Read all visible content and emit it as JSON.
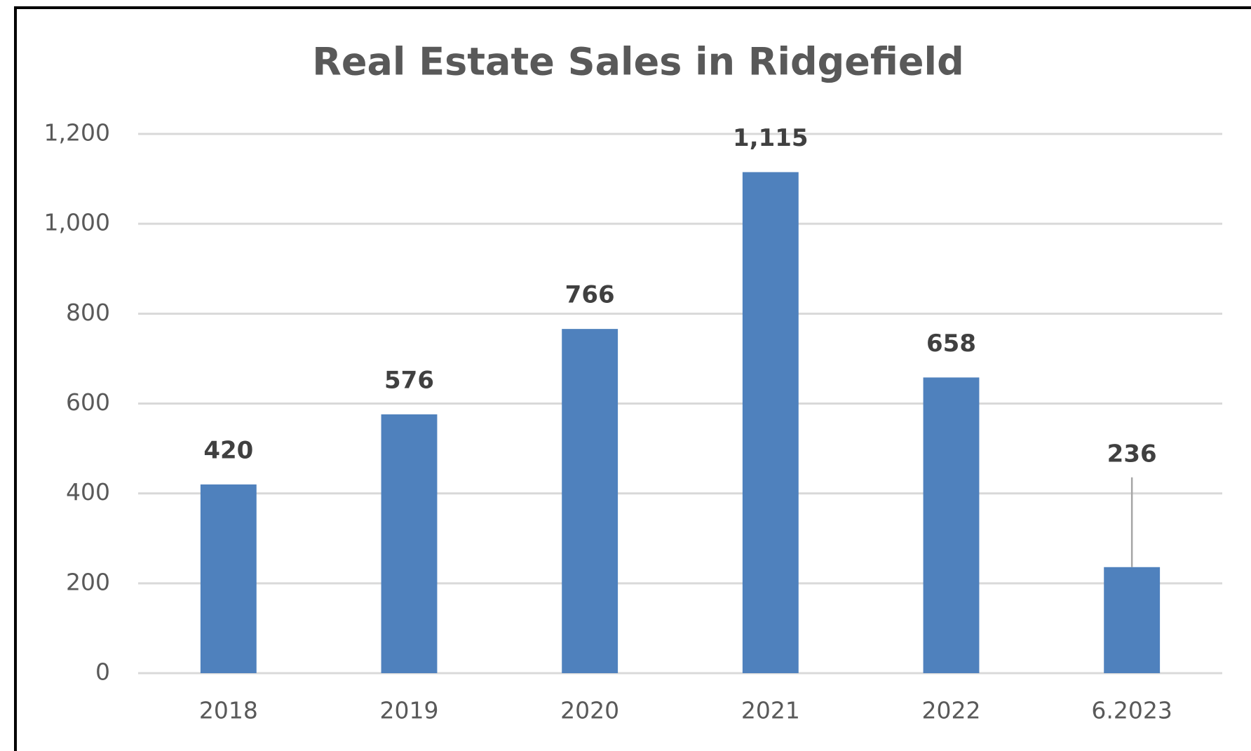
{
  "chart_data": {
    "type": "bar",
    "title": "Real Estate Sales in Ridgefield",
    "categories": [
      "2018",
      "2019",
      "2020",
      "2021",
      "2022",
      "6.2023"
    ],
    "values": [
      420,
      576,
      766,
      1115,
      658,
      236
    ],
    "value_labels": [
      "420",
      "576",
      "766",
      "1,115",
      "658",
      "236"
    ],
    "color": "#4f81bd",
    "ylim": [
      0,
      1200
    ],
    "yticks": [
      0,
      200,
      400,
      600,
      800,
      {
        "value": 1000,
        "label": "1,000"
      },
      {
        "value": 1200,
        "label": "1,200"
      }
    ],
    "grid": true
  }
}
